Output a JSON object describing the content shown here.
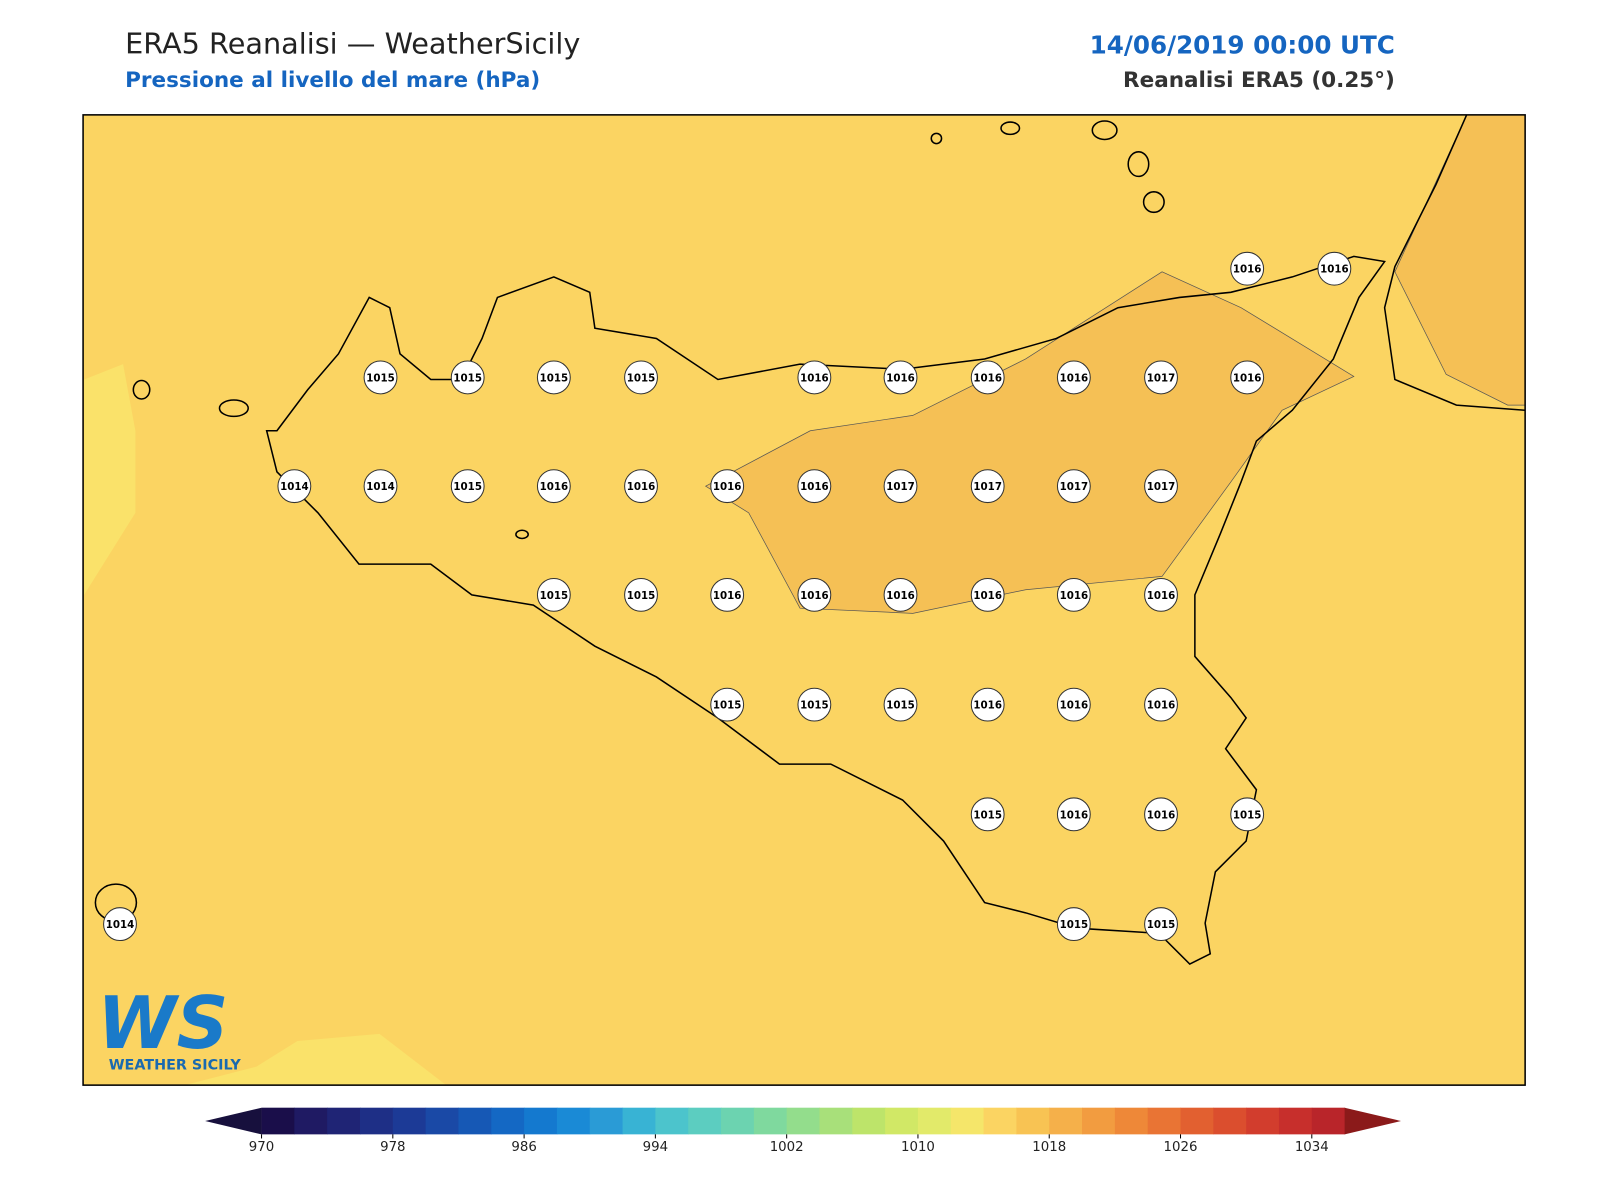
{
  "header": {
    "title": "ERA5 Reanalisi — WeatherSicily",
    "subtitle": "Pressione al livello del mare (hPa)",
    "datetime": "14/06/2019 00:00 UTC",
    "source": "Reanalisi ERA5 (0.25°)"
  },
  "map": {
    "stations": [
      1016,
      1016,
      1015,
      1015,
      1015,
      1015,
      1016,
      1016,
      1016,
      1016,
      1017,
      1016,
      1014,
      1014,
      1015,
      1016,
      1016,
      1016,
      1016,
      1017,
      1017,
      1017,
      1017,
      1015,
      1015,
      1016,
      1016,
      1016,
      1016,
      1016,
      1016,
      1015,
      1015,
      1015,
      1016,
      1016,
      1016,
      1015,
      1016,
      1016,
      1015,
      1014,
      1015,
      1015
    ]
  },
  "logo": {
    "mark": "WS",
    "name": "WEATHER SICILY"
  },
  "colorbar": {
    "range": [
      970,
      1036
    ],
    "ticks": [
      970,
      978,
      986,
      994,
      1002,
      1010,
      1018,
      1026,
      1034
    ],
    "colors": [
      "#1a0e4a",
      "#1f1a63",
      "#1f2475",
      "#1e2f86",
      "#1c3a96",
      "#1a49a6",
      "#1658b5",
      "#1468c4",
      "#1479cf",
      "#1a8ad6",
      "#2a9bd6",
      "#38b3d4",
      "#4cc4cc",
      "#5ccdc0",
      "#6cd3b0",
      "#7fd99e",
      "#93dd8c",
      "#a8e07a",
      "#bde46a",
      "#d1e866",
      "#e2ea6a",
      "#f5e66a",
      "#fbd462",
      "#f8c353",
      "#f5b04a",
      "#f29c40",
      "#ee8838",
      "#e97434",
      "#e26030",
      "#db4e2e",
      "#d23d2d",
      "#c72f2c",
      "#b9252a"
    ],
    "under": "#17103d",
    "over": "#8b1a1a"
  }
}
